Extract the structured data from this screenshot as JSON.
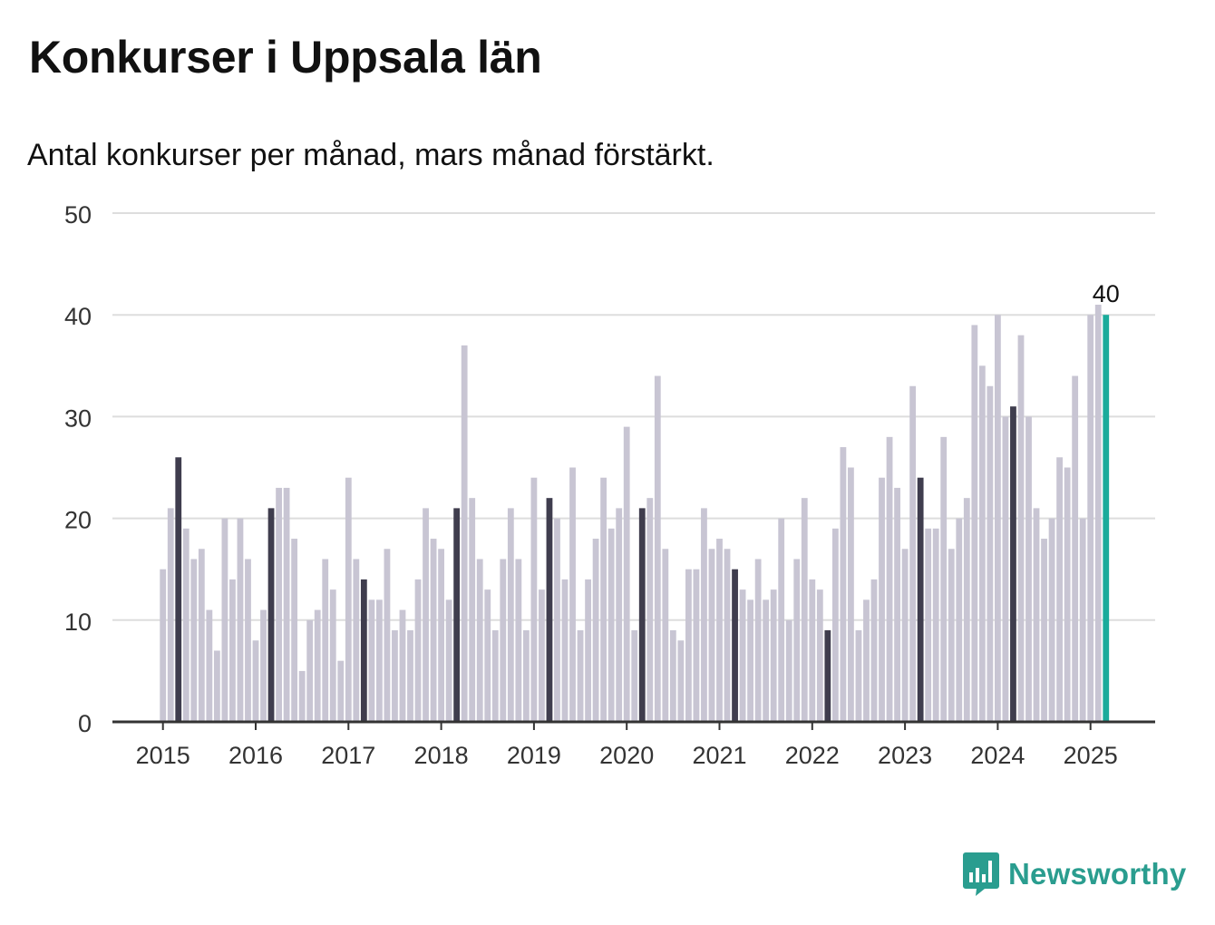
{
  "title": "Konkurser i Uppsala län",
  "subtitle": "Antal konkurser per månad, mars månad förstärkt.",
  "brand": {
    "name": "Newsworthy",
    "icon": "newsworthy-logo-icon",
    "color": "#2a9d8f"
  },
  "colors": {
    "bar": "#c8c5d3",
    "highlight": "#3f3d4e",
    "latest": "#1aab9b",
    "grid": "#dddddd",
    "axis": "#333333"
  },
  "chart_data": {
    "type": "bar",
    "title": "Konkurser i Uppsala län",
    "xlabel": "",
    "ylabel": "",
    "ylim": [
      0,
      50
    ],
    "yticks": [
      0,
      10,
      20,
      30,
      40,
      50
    ],
    "xticks": [
      "2015",
      "2016",
      "2017",
      "2018",
      "2019",
      "2020",
      "2021",
      "2022",
      "2023",
      "2024",
      "2025"
    ],
    "start": "2015-01",
    "highlight_month": "mars",
    "latest_label": "40",
    "grid": true,
    "values": [
      15,
      21,
      26,
      19,
      16,
      17,
      11,
      7,
      20,
      14,
      20,
      16,
      8,
      11,
      21,
      23,
      23,
      18,
      5,
      10,
      11,
      16,
      13,
      6,
      24,
      16,
      14,
      12,
      12,
      17,
      9,
      11,
      9,
      14,
      21,
      18,
      17,
      12,
      21,
      37,
      22,
      16,
      13,
      9,
      16,
      21,
      16,
      9,
      24,
      13,
      22,
      20,
      14,
      25,
      9,
      14,
      18,
      24,
      19,
      21,
      29,
      9,
      21,
      22,
      34,
      17,
      9,
      8,
      15,
      15,
      21,
      17,
      18,
      17,
      15,
      13,
      12,
      16,
      12,
      13,
      20,
      10,
      16,
      22,
      14,
      13,
      9,
      19,
      27,
      25,
      9,
      12,
      14,
      24,
      28,
      23,
      17,
      33,
      24,
      19,
      19,
      28,
      17,
      20,
      22,
      39,
      35,
      33,
      40,
      30,
      31,
      38,
      30,
      21,
      18,
      20,
      26,
      25,
      34,
      20,
      40,
      41,
      40
    ]
  }
}
